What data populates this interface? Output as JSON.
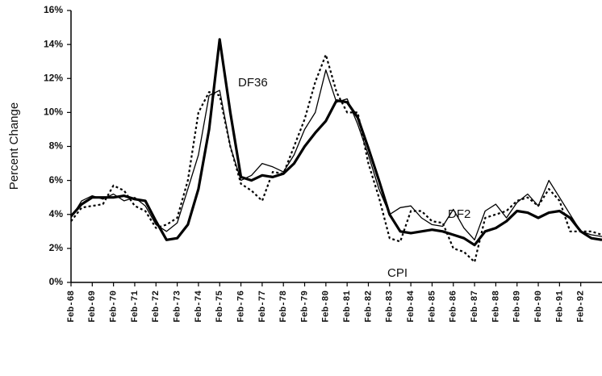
{
  "chart_data": {
    "type": "line",
    "y_label": "Percent Change",
    "x": [
      68,
      68.5,
      69,
      69.5,
      70,
      70.5,
      71,
      71.5,
      72,
      72.5,
      73,
      73.5,
      74,
      74.5,
      75,
      75.5,
      76,
      76.5,
      77,
      77.5,
      78,
      78.5,
      79,
      79.5,
      80,
      80.5,
      81,
      81.5,
      82,
      82.5,
      83,
      83.5,
      84,
      84.5,
      85,
      85.5,
      86,
      86.5,
      87,
      87.5,
      88,
      88.5,
      89,
      89.5,
      90,
      90.5,
      91,
      91.5,
      92,
      92.5,
      93
    ],
    "series": [
      {
        "name": "DF36",
        "color": "#000000",
        "style": "thick",
        "values": [
          3.9,
          4.6,
          5.0,
          5.0,
          5.0,
          5.1,
          4.9,
          4.8,
          3.6,
          2.5,
          2.6,
          3.4,
          5.5,
          9.0,
          14.3,
          10.0,
          6.2,
          6.0,
          6.3,
          6.2,
          6.4,
          7.0,
          8.0,
          8.8,
          9.5,
          10.7,
          10.6,
          9.7,
          7.9,
          6.0,
          4.0,
          3.0,
          2.9,
          3.0,
          3.1,
          3.0,
          2.8,
          2.6,
          2.2,
          3.0,
          3.2,
          3.6,
          4.2,
          4.1,
          3.8,
          4.1,
          4.2,
          3.8,
          3.0,
          2.6,
          2.5
        ]
      },
      {
        "name": "DF2",
        "color": "#000000",
        "style": "thin",
        "values": [
          3.8,
          4.8,
          5.1,
          4.9,
          5.2,
          4.8,
          5.0,
          4.5,
          3.4,
          3.0,
          3.5,
          5.5,
          7.5,
          11.0,
          11.3,
          8.0,
          6.0,
          6.3,
          7.0,
          6.8,
          6.5,
          7.5,
          9.0,
          10.0,
          12.5,
          10.6,
          10.8,
          9.3,
          7.5,
          5.5,
          4.0,
          4.4,
          4.5,
          3.8,
          3.4,
          3.3,
          4.3,
          3.2,
          2.5,
          4.2,
          4.6,
          3.8,
          4.7,
          5.2,
          4.5,
          6.0,
          5.0,
          4.0,
          3.0,
          2.8,
          2.7
        ]
      },
      {
        "name": "CPI",
        "color": "#000000",
        "style": "dotted",
        "values": [
          3.6,
          4.4,
          4.5,
          4.6,
          5.7,
          5.4,
          4.5,
          4.2,
          3.2,
          3.4,
          3.8,
          6.0,
          10.0,
          11.2,
          11.0,
          8.0,
          5.8,
          5.4,
          4.8,
          6.5,
          6.4,
          8.0,
          9.6,
          11.8,
          13.4,
          11.2,
          10.0,
          10.0,
          7.0,
          5.0,
          2.6,
          2.4,
          4.2,
          4.2,
          3.6,
          3.5,
          2.0,
          1.8,
          1.2,
          3.8,
          4.0,
          4.2,
          4.8,
          5.0,
          4.5,
          5.5,
          4.8,
          3.0,
          3.0,
          3.0,
          2.8
        ]
      }
    ],
    "xlim": [
      68,
      93
    ],
    "xticks": [
      {
        "value": 68,
        "label": "Feb-68"
      },
      {
        "value": 69,
        "label": "Feb-69"
      },
      {
        "value": 70,
        "label": "Feb-70"
      },
      {
        "value": 71,
        "label": "Feb-71"
      },
      {
        "value": 72,
        "label": "Feb-72"
      },
      {
        "value": 73,
        "label": "Feb-73"
      },
      {
        "value": 74,
        "label": "Feb-74"
      },
      {
        "value": 75,
        "label": "Feb-75"
      },
      {
        "value": 76,
        "label": "Feb-76"
      },
      {
        "value": 77,
        "label": "Feb-77"
      },
      {
        "value": 78,
        "label": "Feb-78"
      },
      {
        "value": 79,
        "label": "Feb-79"
      },
      {
        "value": 80,
        "label": "Feb-80"
      },
      {
        "value": 81,
        "label": "Feb-81"
      },
      {
        "value": 82,
        "label": "Feb-82"
      },
      {
        "value": 83,
        "label": "Feb-83"
      },
      {
        "value": 84,
        "label": "Feb-84"
      },
      {
        "value": 85,
        "label": "Feb-85"
      },
      {
        "value": 86,
        "label": "Feb-86"
      },
      {
        "value": 87,
        "label": "Feb-87"
      },
      {
        "value": 88,
        "label": "Feb-88"
      },
      {
        "value": 89,
        "label": "Feb-89"
      },
      {
        "value": 90,
        "label": "Feb-90"
      },
      {
        "value": 91,
        "label": "Feb-91"
      },
      {
        "value": 92,
        "label": "Feb-92"
      }
    ],
    "ylim": [
      0,
      16
    ],
    "yticks": [
      {
        "value": 0,
        "label": "0%"
      },
      {
        "value": 2,
        "label": "2%"
      },
      {
        "value": 4,
        "label": "4%"
      },
      {
        "value": 6,
        "label": "6%"
      },
      {
        "value": 8,
        "label": "8%"
      },
      {
        "value": 10,
        "label": "10%"
      },
      {
        "value": 12,
        "label": "12%"
      },
      {
        "value": 14,
        "label": "14%"
      },
      {
        "value": 16,
        "label": "16%"
      }
    ],
    "grid": false
  }
}
